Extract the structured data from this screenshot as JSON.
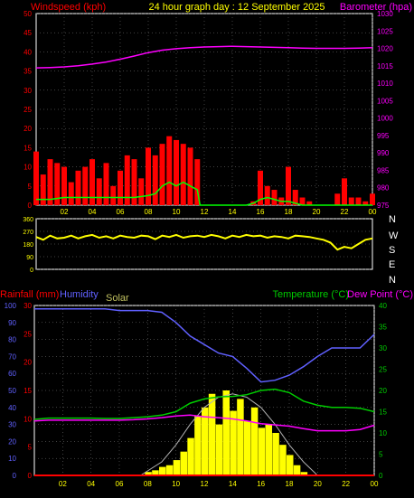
{
  "header": {
    "windspeed_label": "Windspeed (kph)",
    "title": "24 hour graph day : 12 September 2025",
    "barometer_label": "Barometer (hpa)"
  },
  "colors": {
    "background": "#000000",
    "plot_border": "#ffffff",
    "grid": "#808080",
    "wind_axis": "#ff0000",
    "gust": "#ff0000",
    "avg_wind": "#00ff00",
    "baro": "#ff00ff",
    "direction": "#ffff00",
    "rain": "#ff0000",
    "humidity": "#6060ff",
    "solar": "#ffff00",
    "solar_theory": "#b0b0b0",
    "temperature": "#00cc00",
    "dewpoint": "#ff00ff",
    "time_label": "#ffff00"
  },
  "chart_data": [
    {
      "type": "line",
      "panel": "wind-barometer",
      "xlabel": "",
      "x_ticks": [
        "02",
        "04",
        "06",
        "08",
        "10",
        "12",
        "14",
        "16",
        "18",
        "20",
        "22",
        "00"
      ],
      "left_axis": {
        "label": "Windspeed (kph)",
        "range": [
          0,
          50
        ],
        "ticks": [
          0,
          5,
          10,
          15,
          20,
          25,
          30,
          35,
          40,
          45,
          50
        ]
      },
      "right_axis": {
        "label": "Barometer (hpa)",
        "range": [
          975,
          1030
        ],
        "ticks": [
          975,
          980,
          985,
          990,
          995,
          1000,
          1005,
          1010,
          1015,
          1020,
          1025,
          1030
        ]
      },
      "series": [
        {
          "name": "Barometer",
          "axis": "right",
          "x": [
            0,
            1,
            2,
            3,
            4,
            5,
            6,
            7,
            8,
            9,
            10,
            11,
            12,
            13,
            14,
            15,
            16,
            17,
            18,
            19,
            20,
            21,
            22,
            23,
            24
          ],
          "values": [
            1014.4,
            1014.5,
            1014.7,
            1015.0,
            1015.5,
            1016.1,
            1016.9,
            1017.8,
            1018.8,
            1019.5,
            1019.9,
            1020.2,
            1020.4,
            1020.5,
            1020.6,
            1020.5,
            1020.4,
            1020.3,
            1020.2,
            1020.1,
            1020.0,
            1020.0,
            1020.0,
            1020.1,
            1020.2
          ]
        },
        {
          "name": "Gust",
          "axis": "left",
          "x": [
            0,
            0.5,
            1,
            1.5,
            2,
            2.5,
            3,
            3.5,
            4,
            4.5,
            5,
            5.5,
            6,
            6.5,
            7,
            7.5,
            8,
            8.5,
            9,
            9.5,
            10,
            10.5,
            11,
            11.5,
            11.7,
            12,
            13,
            14,
            15,
            15.5,
            16,
            16.5,
            17,
            17.5,
            18,
            18.5,
            19,
            19.5,
            20,
            20.5,
            21,
            21.5,
            22,
            22.5,
            23,
            23.5,
            24
          ],
          "values": [
            14,
            8,
            12,
            11,
            10,
            6,
            9,
            10,
            12,
            7,
            11,
            5,
            9,
            13,
            12,
            7,
            15,
            13,
            16,
            18,
            17,
            16,
            15,
            12,
            0,
            0,
            0,
            0,
            0,
            1,
            9,
            5,
            4,
            2,
            10,
            4,
            2,
            1,
            0,
            0,
            0,
            3,
            7,
            2,
            2,
            1,
            3
          ]
        },
        {
          "name": "Average wind",
          "axis": "left",
          "x": [
            0,
            1,
            2,
            3,
            4,
            5,
            6,
            7,
            8,
            8.5,
            9,
            9.5,
            10,
            10.5,
            11,
            11.5,
            11.7,
            12,
            13,
            14,
            15,
            15.5,
            16,
            16.5,
            17,
            17.5,
            18,
            18.5,
            19,
            20,
            21,
            22,
            23,
            24
          ],
          "values": [
            1.5,
            1.5,
            2,
            2,
            2,
            2,
            2,
            2,
            2.5,
            3,
            5,
            6,
            5,
            6,
            5,
            4,
            0,
            0,
            0,
            0,
            0,
            0.5,
            1.5,
            2,
            1.5,
            1,
            1,
            0.5,
            0,
            0,
            0,
            0,
            0,
            0
          ]
        },
        {
          "name": "Direction",
          "axis": "direction",
          "range": [
            0,
            360
          ],
          "ticks": [
            0,
            90,
            180,
            270,
            360
          ],
          "compass": [
            "N",
            "W",
            "S",
            "E",
            "N"
          ],
          "x": [
            0,
            0.5,
            1,
            1.5,
            2,
            2.5,
            3,
            3.5,
            4,
            4.5,
            5,
            5.5,
            6,
            6.5,
            7,
            7.5,
            8,
            8.5,
            9,
            9.5,
            10,
            10.5,
            11,
            11.5,
            12,
            12.5,
            13,
            13.5,
            14,
            14.5,
            15,
            15.5,
            16,
            16.5,
            17,
            17.5,
            18,
            18.5,
            19,
            19.5,
            20,
            20.5,
            21,
            21.5,
            22,
            22.5,
            23,
            23.5,
            24
          ],
          "values": [
            230,
            210,
            240,
            220,
            225,
            240,
            220,
            235,
            245,
            225,
            235,
            220,
            240,
            230,
            225,
            240,
            235,
            215,
            240,
            230,
            245,
            225,
            235,
            240,
            230,
            245,
            235,
            220,
            240,
            230,
            245,
            235,
            240,
            225,
            235,
            230,
            220,
            240,
            235,
            230,
            220,
            210,
            190,
            140,
            160,
            150,
            180,
            210,
            220
          ]
        }
      ]
    },
    {
      "type": "line",
      "panel": "rain-humidity-solar-temperature",
      "x_ticks": [
        "02",
        "04",
        "06",
        "08",
        "10",
        "12",
        "14",
        "16",
        "18",
        "20",
        "22",
        "00"
      ],
      "labels": {
        "rainfall": "Rainfall (mm)",
        "humidity": "Humidity",
        "solar": "Solar",
        "temperature": "Temperature (°C)",
        "dewpoint": "Dew Point (°C)"
      },
      "humidity_axis": {
        "range": [
          0,
          100
        ],
        "ticks": [
          0,
          10,
          20,
          30,
          40,
          50,
          60,
          70,
          80,
          90,
          100
        ]
      },
      "rain_axis": {
        "range": [
          0,
          30
        ],
        "ticks": [
          0,
          5,
          10,
          15,
          20,
          25,
          30
        ]
      },
      "temp_axis": {
        "range": [
          0,
          40
        ],
        "ticks": [
          0,
          5,
          10,
          15,
          20,
          25,
          30,
          35,
          40
        ]
      },
      "series": [
        {
          "name": "Humidity",
          "axis": "humidity",
          "x": [
            0,
            1,
            2,
            3,
            4,
            5,
            6,
            7,
            8,
            9,
            10,
            11,
            12,
            13,
            14,
            15,
            16,
            17,
            18,
            19,
            20,
            21,
            22,
            23,
            24
          ],
          "values": [
            98,
            98,
            98,
            98,
            98,
            98,
            97,
            97,
            97,
            96,
            90,
            82,
            77,
            72,
            70,
            63,
            55,
            56,
            59,
            64,
            70,
            75,
            75,
            75,
            83
          ]
        },
        {
          "name": "Temperature",
          "axis": "temp",
          "x": [
            0,
            1,
            2,
            3,
            4,
            5,
            6,
            7,
            8,
            9,
            10,
            11,
            12,
            13,
            14,
            15,
            16,
            17,
            18,
            19,
            20,
            21,
            22,
            23,
            24
          ],
          "values": [
            13.2,
            13.5,
            13.5,
            13.5,
            13.5,
            13.4,
            13.4,
            13.6,
            13.8,
            14.2,
            15.0,
            17.0,
            18.0,
            18.5,
            18.6,
            19.0,
            20.0,
            20.3,
            19.5,
            17.5,
            16.5,
            16.0,
            16.0,
            15.8,
            15.0
          ]
        },
        {
          "name": "Dew Point",
          "axis": "temp",
          "x": [
            0,
            1,
            2,
            3,
            4,
            5,
            6,
            7,
            8,
            9,
            10,
            11,
            12,
            13,
            14,
            15,
            16,
            17,
            18,
            19,
            20,
            21,
            22,
            23,
            24
          ],
          "values": [
            12.8,
            13.0,
            13.0,
            13.0,
            13.0,
            13.0,
            13.0,
            13.1,
            13.3,
            13.6,
            14.0,
            14.2,
            13.8,
            13.6,
            13.3,
            12.8,
            12.2,
            11.9,
            11.6,
            11.0,
            10.5,
            10.5,
            10.5,
            10.8,
            11.8
          ]
        },
        {
          "name": "Solar",
          "axis": "humidity",
          "x": [
            7.5,
            8,
            8.5,
            9,
            9.5,
            10,
            10.5,
            11,
            11.5,
            12,
            12.5,
            13,
            13.5,
            14,
            14.5,
            15,
            15.5,
            16,
            16.5,
            17,
            17.5,
            18,
            18.5,
            19,
            19.5
          ],
          "values": [
            0,
            2,
            3,
            5,
            6,
            9,
            14,
            22,
            35,
            40,
            48,
            30,
            50,
            38,
            45,
            32,
            40,
            28,
            30,
            25,
            18,
            12,
            6,
            2,
            0
          ]
        },
        {
          "name": "Solar theoretical",
          "axis": "humidity",
          "x": [
            7.5,
            9,
            10,
            11,
            12,
            13,
            14,
            15,
            16,
            17,
            18,
            19,
            20
          ],
          "values": [
            0,
            8,
            18,
            30,
            40,
            46,
            48,
            46,
            40,
            30,
            18,
            8,
            0
          ]
        },
        {
          "name": "Rainfall",
          "axis": "rain",
          "x": [
            0,
            24
          ],
          "values": [
            0,
            0
          ]
        }
      ]
    }
  ]
}
